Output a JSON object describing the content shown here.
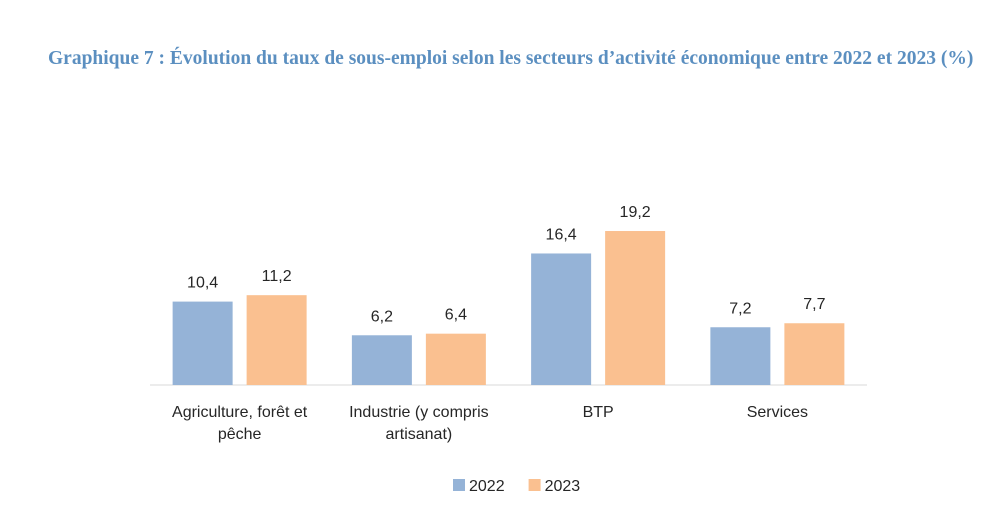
{
  "chart_data": {
    "type": "bar",
    "title": "Graphique 7 : Évolution du taux de sous-emploi selon les secteurs d’activité économique entre 2022 et 2023 (%)",
    "categories": [
      "Agriculture, forêt et pêche",
      "Industrie (y compris artisanat)",
      "BTP",
      "Services"
    ],
    "series": [
      {
        "name": "2022",
        "color": "#95b3d7",
        "values": [
          10.4,
          6.2,
          16.4,
          7.2
        ],
        "value_labels": [
          "10,4",
          "6,2",
          "16,4",
          "7,2"
        ]
      },
      {
        "name": "2023",
        "color": "#fac090",
        "values": [
          11.2,
          6.4,
          19.2,
          7.7
        ],
        "value_labels": [
          "11,2",
          "6,4",
          "19,2",
          "7,7"
        ]
      }
    ],
    "legend": "bottom"
  }
}
